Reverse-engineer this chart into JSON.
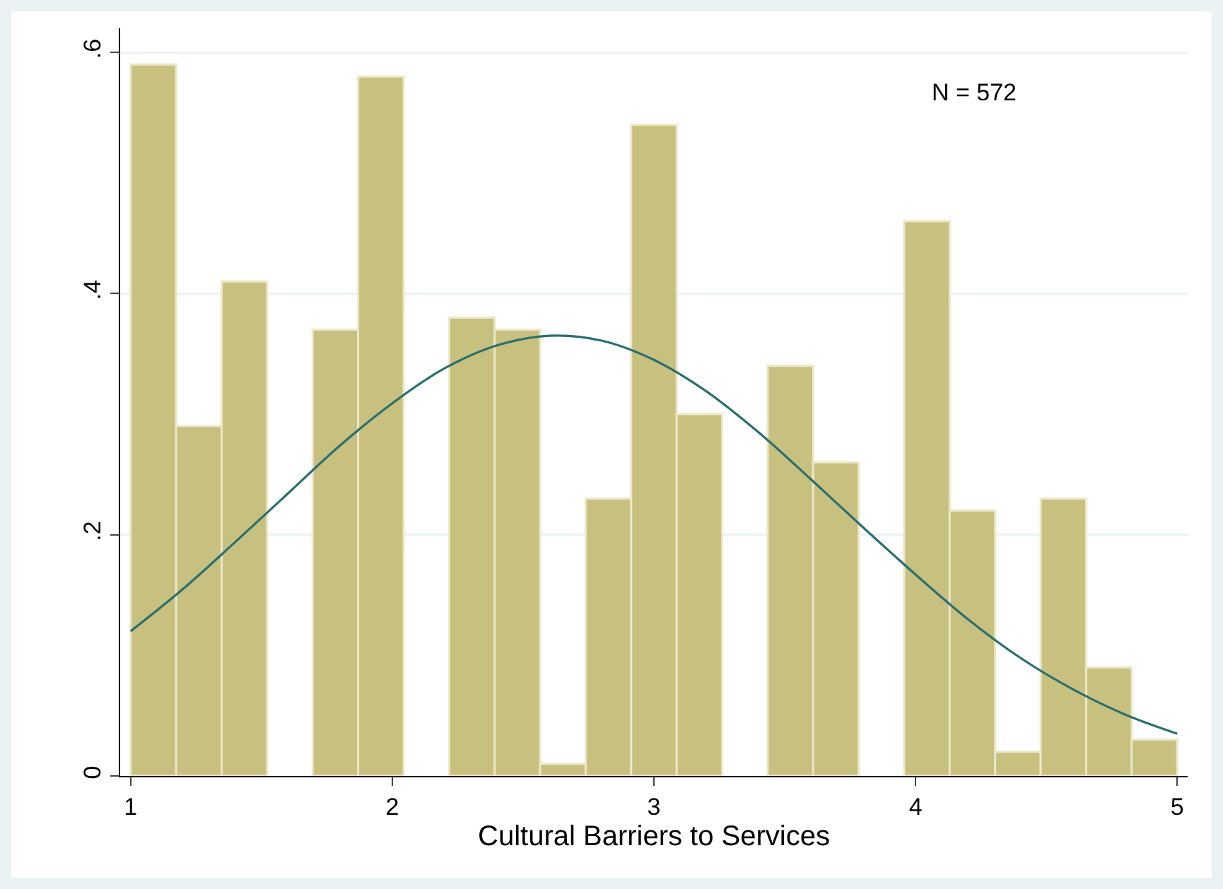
{
  "chart_data": {
    "type": "histogram",
    "xlabel": "Cultural Barriers to Services",
    "bins": [
      1,
      1.1739,
      1.3478,
      1.5217,
      1.6957,
      1.8696,
      2.0435,
      2.2174,
      2.3913,
      2.5652,
      2.7391,
      2.913,
      3.087,
      3.2609,
      3.4348,
      3.6087,
      3.7826,
      3.9565,
      4.1304,
      4.3043,
      4.4783,
      4.6522,
      4.8261,
      5
    ],
    "values": [
      0.59,
      0.29,
      0.41,
      0,
      0.37,
      0.58,
      0,
      0.38,
      0.37,
      0.01,
      0.23,
      0.54,
      0.3,
      0,
      0.34,
      0.26,
      0,
      0.46,
      0.22,
      0.02,
      0.23,
      0.09,
      0.03
    ],
    "color": "#c8c07e",
    "series": [
      {
        "type": "line",
        "color": "#2a6f6f",
        "x": [
          1,
          1.2,
          1.4,
          1.6,
          1.8,
          2,
          2.2,
          2.4,
          2.6,
          2.8,
          3,
          3.2,
          3.4,
          3.6,
          3.8,
          4,
          4.2,
          4.4,
          4.6,
          4.8,
          5
        ],
        "values": [
          0.12,
          0.155,
          0.194,
          0.234,
          0.274,
          0.309,
          0.338,
          0.357,
          0.365,
          0.361,
          0.345,
          0.319,
          0.285,
          0.246,
          0.206,
          0.167,
          0.13,
          0.098,
          0.072,
          0.051,
          0.035
        ]
      }
    ],
    "annotations": [
      "N = 572"
    ],
    "xlim": [
      0.96,
      5.04
    ],
    "xticks": [
      1,
      2,
      3,
      4,
      5
    ],
    "ylim": [
      0,
      0.62
    ],
    "yticks": [
      0,
      {
        "value": 0.2,
        "label": ".2"
      },
      {
        "value": 0.4,
        "label": ".4"
      },
      {
        "value": 0.6,
        "label": ".6"
      }
    ],
    "grid": "y",
    "marker": "none",
    "line_style": "solid"
  }
}
